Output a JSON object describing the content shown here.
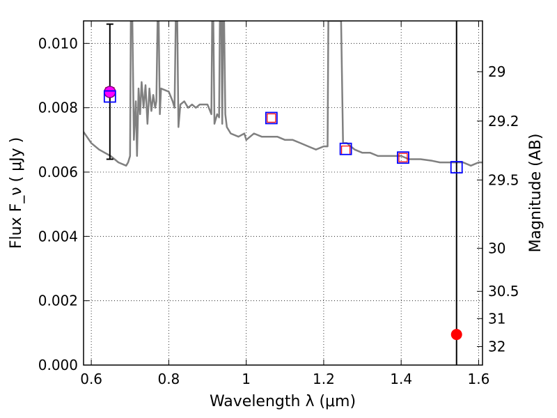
{
  "chart_data": {
    "type": "scatter",
    "xlabel": "Wavelength  λ (μm)",
    "ylabel": "Flux  F_ν  ( μJy )",
    "ylabel_right": "Magnitude (AB)",
    "xlim": [
      0.58,
      1.61
    ],
    "ylim": [
      0.0,
      0.0107
    ],
    "x_ticks": [
      0.6,
      0.8,
      1.0,
      1.2,
      1.4,
      1.6
    ],
    "x_tick_labels": [
      "0.6",
      "0.8",
      "1",
      "1.2",
      "1.4",
      "1.6"
    ],
    "y_ticks": [
      0.0,
      0.002,
      0.004,
      0.006,
      0.008,
      0.01
    ],
    "y_tick_labels": [
      "0.000",
      "0.002",
      "0.004",
      "0.006",
      "0.008",
      "0.010"
    ],
    "right_ticks": [
      29,
      29.2,
      29.5,
      30,
      30.5,
      31,
      32
    ],
    "right_tick_labels": [
      "29",
      "29.2",
      "29.5",
      "30",
      "30.5",
      "31",
      "32"
    ],
    "grid": true,
    "model_spectrum": {
      "color": "#808080",
      "points": [
        [
          0.58,
          0.00725
        ],
        [
          0.6,
          0.0069
        ],
        [
          0.62,
          0.0067
        ],
        [
          0.635,
          0.0066
        ],
        [
          0.65,
          0.0065
        ],
        [
          0.66,
          0.0064
        ],
        [
          0.67,
          0.0063
        ],
        [
          0.69,
          0.0062
        ],
        [
          0.695,
          0.0063
        ],
        [
          0.7,
          0.0065
        ],
        [
          0.702,
          0.0107
        ],
        [
          0.706,
          0.0107
        ],
        [
          0.71,
          0.007
        ],
        [
          0.715,
          0.0082
        ],
        [
          0.718,
          0.0065
        ],
        [
          0.722,
          0.0086
        ],
        [
          0.726,
          0.0078
        ],
        [
          0.73,
          0.0088
        ],
        [
          0.735,
          0.008
        ],
        [
          0.74,
          0.0087
        ],
        [
          0.745,
          0.0075
        ],
        [
          0.75,
          0.0086
        ],
        [
          0.755,
          0.0079
        ],
        [
          0.76,
          0.0084
        ],
        [
          0.765,
          0.008
        ],
        [
          0.768,
          0.0082
        ],
        [
          0.771,
          0.0107
        ],
        [
          0.774,
          0.0107
        ],
        [
          0.777,
          0.0078
        ],
        [
          0.78,
          0.0086
        ],
        [
          0.79,
          0.00855
        ],
        [
          0.8,
          0.0085
        ],
        [
          0.81,
          0.0082
        ],
        [
          0.815,
          0.008
        ],
        [
          0.818,
          0.0107
        ],
        [
          0.822,
          0.0107
        ],
        [
          0.825,
          0.0074
        ],
        [
          0.83,
          0.0081
        ],
        [
          0.84,
          0.0082
        ],
        [
          0.85,
          0.008
        ],
        [
          0.86,
          0.0081
        ],
        [
          0.87,
          0.008
        ],
        [
          0.88,
          0.0081
        ],
        [
          0.9,
          0.0081
        ],
        [
          0.91,
          0.0078
        ],
        [
          0.912,
          0.0107
        ],
        [
          0.915,
          0.0107
        ],
        [
          0.918,
          0.0075
        ],
        [
          0.925,
          0.0078
        ],
        [
          0.93,
          0.0077
        ],
        [
          0.932,
          0.0107
        ],
        [
          0.936,
          0.0107
        ],
        [
          0.938,
          0.0075
        ],
        [
          0.94,
          0.0107
        ],
        [
          0.943,
          0.0107
        ],
        [
          0.946,
          0.0078
        ],
        [
          0.95,
          0.0074
        ],
        [
          0.96,
          0.0072
        ],
        [
          0.98,
          0.0071
        ],
        [
          0.995,
          0.0072
        ],
        [
          1.0,
          0.007
        ],
        [
          1.02,
          0.0072
        ],
        [
          1.04,
          0.0071
        ],
        [
          1.06,
          0.0071
        ],
        [
          1.08,
          0.0071
        ],
        [
          1.1,
          0.007
        ],
        [
          1.12,
          0.007
        ],
        [
          1.14,
          0.0069
        ],
        [
          1.16,
          0.0068
        ],
        [
          1.18,
          0.0067
        ],
        [
          1.2,
          0.0068
        ],
        [
          1.21,
          0.0068
        ],
        [
          1.212,
          0.0107
        ],
        [
          1.245,
          0.0107
        ],
        [
          1.25,
          0.0069
        ],
        [
          1.26,
          0.0069
        ],
        [
          1.28,
          0.0067
        ],
        [
          1.3,
          0.0066
        ],
        [
          1.32,
          0.0066
        ],
        [
          1.34,
          0.0065
        ],
        [
          1.36,
          0.0065
        ],
        [
          1.38,
          0.0065
        ],
        [
          1.4,
          0.0065
        ],
        [
          1.42,
          0.0064
        ],
        [
          1.45,
          0.0064
        ],
        [
          1.48,
          0.00635
        ],
        [
          1.5,
          0.0063
        ],
        [
          1.52,
          0.0063
        ],
        [
          1.54,
          0.0063
        ],
        [
          1.56,
          0.0063
        ],
        [
          1.58,
          0.0062
        ],
        [
          1.6,
          0.0063
        ],
        [
          1.61,
          0.0063
        ]
      ]
    },
    "model_photometry_blue_squares": {
      "color": "#0000ff",
      "x": [
        0.648,
        1.065,
        1.257,
        1.405,
        1.543
      ],
      "y": [
        0.00835,
        0.00768,
        0.00672,
        0.00645,
        0.00615
      ]
    },
    "model_photometry_red_squares": {
      "color": "#ff0000",
      "x": [
        0.648,
        1.065,
        1.257,
        1.405
      ],
      "y": [
        0.0085,
        0.00768,
        0.00668,
        0.00645
      ]
    },
    "detection": {
      "color": "#ff00ff",
      "edge_color": "#800080",
      "x": 0.648,
      "y": 0.00849,
      "yerr_low": 0.0064,
      "yerr_high": 0.0106
    },
    "upper_limit_point": {
      "color": "#ff0000",
      "x": 1.543,
      "y": 0.00095,
      "errorbar_low": 0.0,
      "errorbar_high": 0.0107
    }
  }
}
